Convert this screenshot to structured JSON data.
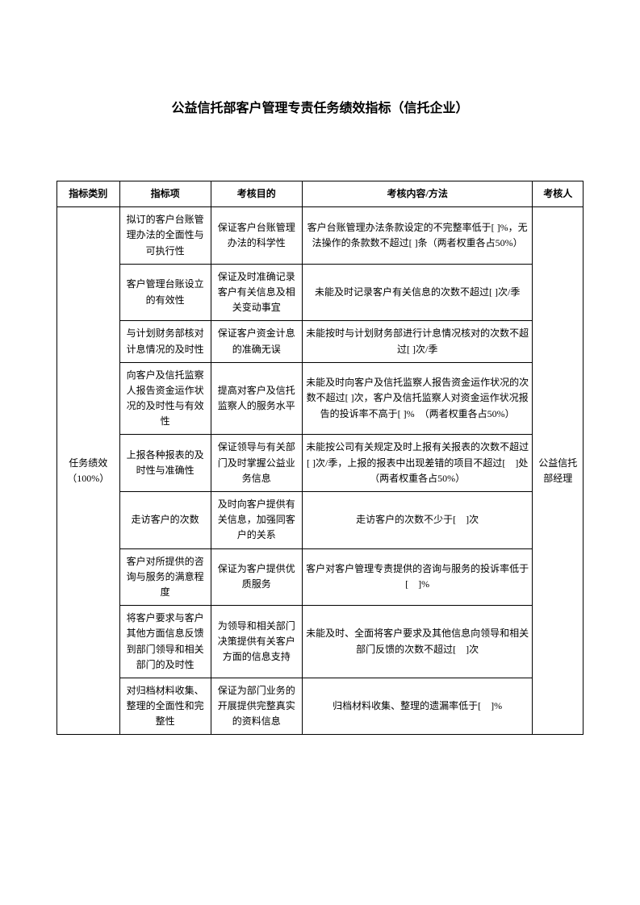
{
  "title": "公益信托部客户管理专责任务绩效指标（信托企业）",
  "headers": {
    "category": "指标类别",
    "indicator": "指标项",
    "purpose": "考核目的",
    "method": "考核内容/方法",
    "assessor": "考核人"
  },
  "categoryLabel": "任务绩效（100%）",
  "assessorLabel": "公益信托部经理",
  "rows": [
    {
      "indicator": "拟订的客户台账管理办法的全面性与可执行性",
      "purpose": "保证客户台账管理办法的科学性",
      "method": "客户台账管理办法条款设定的不完整率低于[ ]%，无法操作的条款数不超过[ ]条（两者权重各占50%）"
    },
    {
      "indicator": "客户管理台账设立的有效性",
      "purpose": "保证及时准确记录客户有关信息及相关变动事宜",
      "method": "未能及时记录客户有关信息的次数不超过[ ]次/季"
    },
    {
      "indicator": "与计划财务部核对计息情况的及时性",
      "purpose": "保证客户资金计息的准确无误",
      "method": "未能按时与计划财务部进行计息情况核对的次数不超过[ ]次/季"
    },
    {
      "indicator": "向客户及信托监察人报告资金运作状况的及时性与有效性",
      "purpose": "提高对客户及信托监察人的服务水平",
      "method": "未能及时向客户及信托监察人报告资金运作状况的次数不超过[ ]次，客户及信托监察人对资金运作状况报告的投诉率不高于[ ]%　（两者权重各占50%）"
    },
    {
      "indicator": "上报各种报表的及时性与准确性",
      "purpose": "保证领导与有关部门及时掌握公益业务信息",
      "method": "未能按公司有关规定及时上报有关报表的次数不超过[ ]次/季，上报的报表中出现差错的项目不超过[　]处（两者权重各占50%）"
    },
    {
      "indicator": "走访客户的次数",
      "purpose": "及时向客户提供有关信息，加强同客户的关系",
      "method": "走访客户的次数不少于[　]次"
    },
    {
      "indicator": "客户对所提供的咨询与服务的满意程度",
      "purpose": "保证为客户提供优质服务",
      "method": "客户对客户管理专责提供的咨询与服务的投诉率低于[　]%"
    },
    {
      "indicator": "将客户要求与客户其他方面信息反馈到部门领导和相关部门的及时性",
      "purpose": "为领导和相关部门决策提供有关客户方面的信息支持",
      "method": "未能及时、全面将客户要求及其他信息向领导和相关部门反馈的次数不超过[　]次"
    },
    {
      "indicator": "对归档材料收集、整理的全面性和完整性",
      "purpose": "保证为部门业务的开展提供完整真实的资料信息",
      "method": "归档材料收集、整理的遗漏率低于[　]%"
    }
  ]
}
